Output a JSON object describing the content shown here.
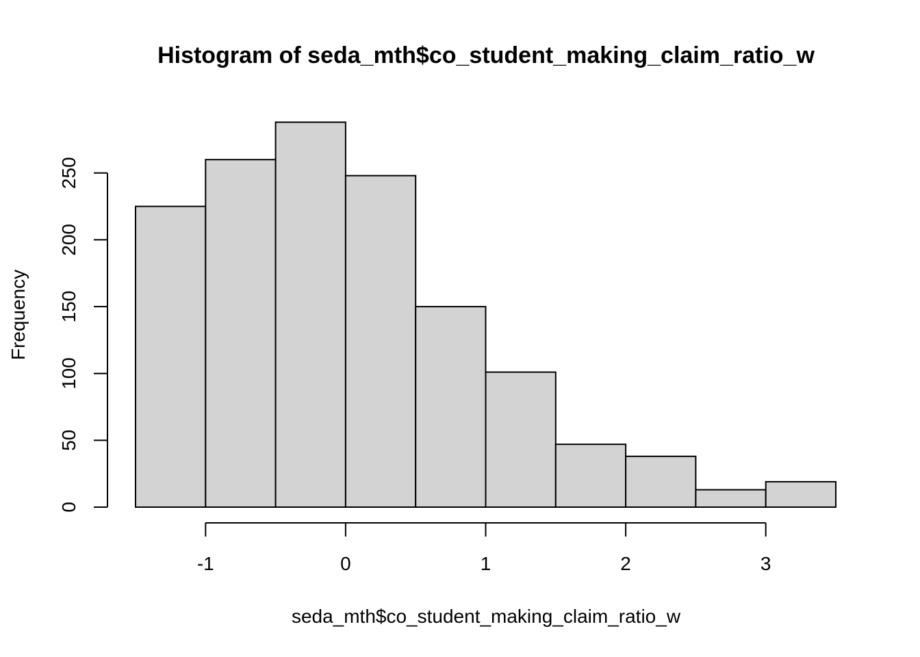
{
  "chart_data": {
    "type": "bar",
    "title": "Histogram of seda_mth$co_student_making_claim_ratio_w",
    "xlabel": "seda_mth$co_student_making_claim_ratio_w",
    "ylabel": "Frequency",
    "bin_edges": [
      -1.5,
      -1.0,
      -0.5,
      0.0,
      0.5,
      1.0,
      1.5,
      2.0,
      2.5,
      3.0,
      3.5
    ],
    "values": [
      225,
      260,
      288,
      248,
      150,
      101,
      47,
      38,
      13,
      19
    ],
    "x_ticks": [
      -1,
      0,
      1,
      2,
      3
    ],
    "y_ticks": [
      0,
      50,
      100,
      150,
      200,
      250
    ],
    "xlim": [
      -1.5,
      3.5
    ],
    "ylim": [
      0,
      288
    ],
    "bar_color": "#d3d3d3",
    "grid": false,
    "legend": "none"
  }
}
